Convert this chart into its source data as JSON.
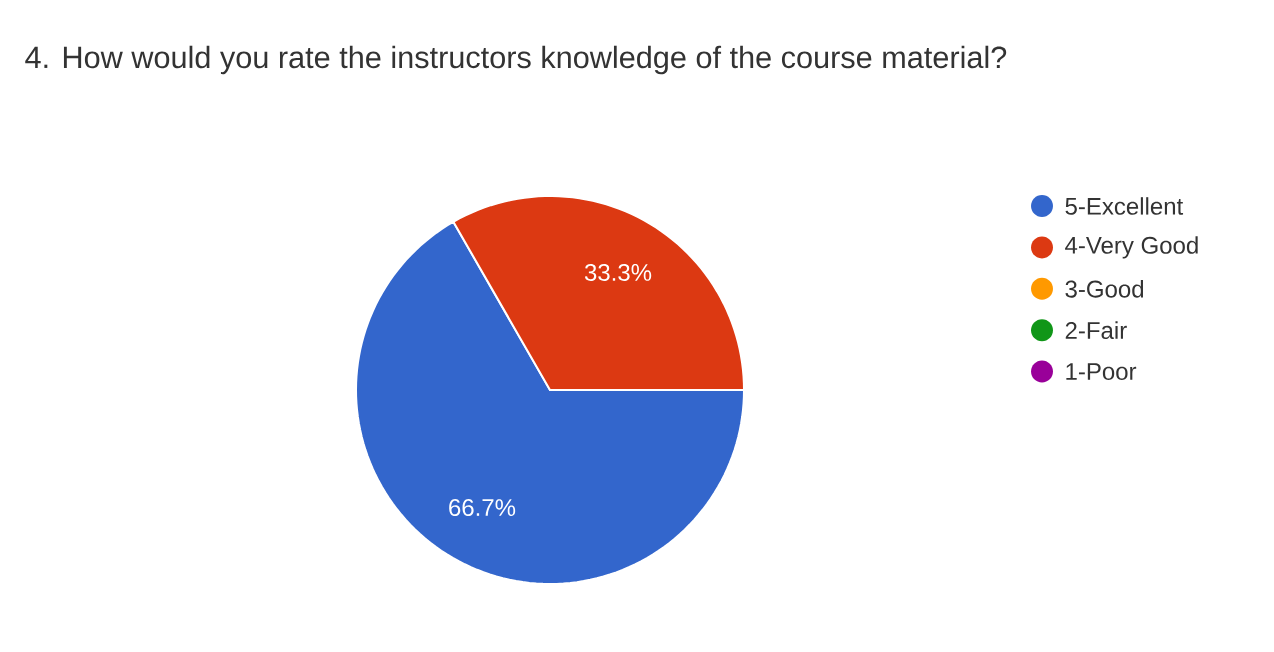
{
  "chart_data": {
    "type": "pie",
    "title": "4. How would you rate the instructors knowledge of the course material?",
    "categories": [
      "5-Excellent",
      "4-Very Good",
      "3-Good",
      "2-Fair",
      "1-Poor"
    ],
    "values": [
      66.7,
      33.3,
      0,
      0,
      0
    ],
    "colors": [
      "#3366cc",
      "#dc3912",
      "#ff9900",
      "#109618",
      "#990099"
    ],
    "value_labels": [
      "66.7%",
      "33.3%",
      null,
      null,
      null
    ],
    "legend": "right"
  }
}
